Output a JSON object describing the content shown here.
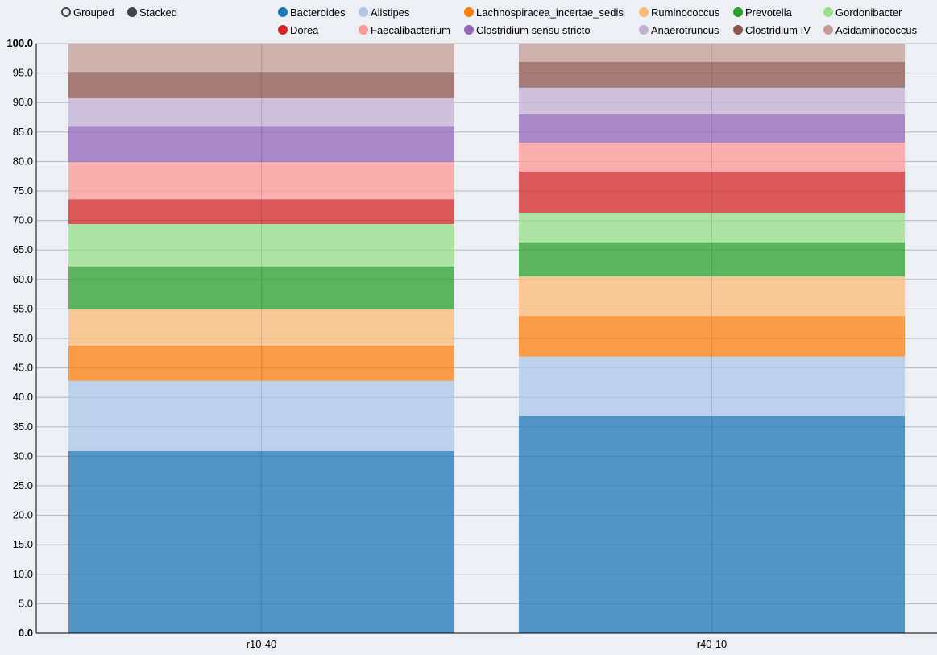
{
  "controls": {
    "options": [
      {
        "label": "Grouped",
        "selected": false
      },
      {
        "label": "Stacked",
        "selected": true
      }
    ]
  },
  "chart_data": {
    "type": "bar",
    "stacked": true,
    "categories": [
      "r10-40",
      "r40-10"
    ],
    "ylim": [
      0,
      100
    ],
    "yticks": [
      "0.0",
      "5.0",
      "10.0",
      "15.0",
      "20.0",
      "25.0",
      "30.0",
      "35.0",
      "40.0",
      "45.0",
      "50.0",
      "55.0",
      "60.0",
      "65.0",
      "70.0",
      "75.0",
      "80.0",
      "85.0",
      "90.0",
      "95.0",
      "100.0"
    ],
    "grid": true,
    "legend_position": "top",
    "series": [
      {
        "name": "Bacteroides",
        "color": "#1f77b4",
        "values": [
          30.9,
          36.9
        ]
      },
      {
        "name": "Alistipes",
        "color": "#aec7e8",
        "values": [
          11.9,
          10.0
        ]
      },
      {
        "name": "Lachnospiracea_incertae_sedis",
        "color": "#ff7f0e",
        "values": [
          6.0,
          6.9
        ]
      },
      {
        "name": "Ruminococcus",
        "color": "#ffbb78",
        "values": [
          6.1,
          6.7
        ]
      },
      {
        "name": "Prevotella",
        "color": "#2ca02c",
        "values": [
          7.3,
          5.8
        ]
      },
      {
        "name": "Gordonibacter",
        "color": "#98df8a",
        "values": [
          7.2,
          5.0
        ]
      },
      {
        "name": "Dorea",
        "color": "#d62728",
        "values": [
          4.2,
          7.0
        ]
      },
      {
        "name": "Faecalibacterium",
        "color": "#ff9896",
        "values": [
          6.3,
          4.9
        ]
      },
      {
        "name": "Clostridium sensu stricto",
        "color": "#9467bd",
        "values": [
          6.0,
          4.8
        ]
      },
      {
        "name": "Anaerotruncus",
        "color": "#c5b0d5",
        "values": [
          4.8,
          4.5
        ]
      },
      {
        "name": "Clostridium IV",
        "color": "#8c564b",
        "values": [
          4.5,
          4.4
        ]
      },
      {
        "name": "Acidaminococcus",
        "color": "#c49c94",
        "values": [
          4.8,
          3.1
        ]
      }
    ]
  }
}
